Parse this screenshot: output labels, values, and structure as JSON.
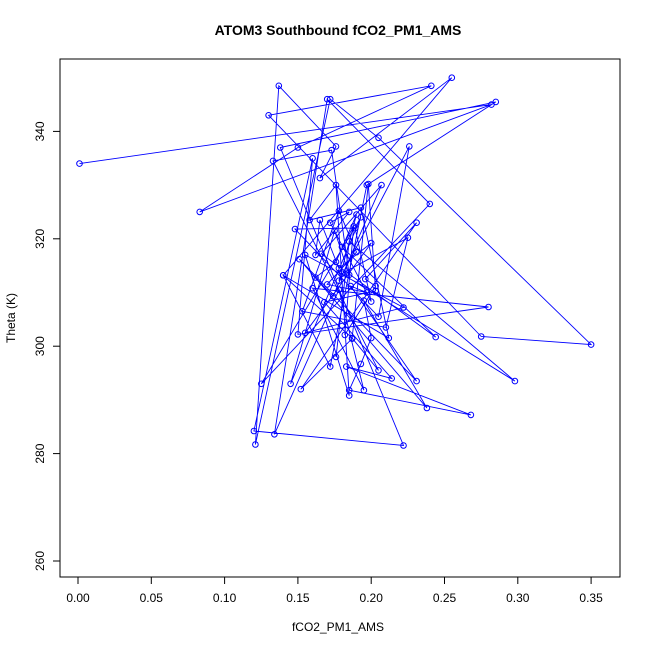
{
  "chart_data": {
    "type": "line",
    "title": "ATOM3 Southbound fCO2_PM1_AMS",
    "xlabel": "fCO2_PM1_AMS",
    "ylabel": "Theta (K)",
    "xlim": [
      0.0,
      0.36
    ],
    "ylim": [
      260,
      352
    ],
    "x_ticks": [
      "0.00",
      "0.05",
      "0.10",
      "0.15",
      "0.20",
      "0.25",
      "0.30",
      "0.35"
    ],
    "y_ticks": [
      "260",
      "280",
      "300",
      "320",
      "340"
    ],
    "marker": "open-circle",
    "color": "#0000ff",
    "grid": false,
    "legend": "none",
    "series": [
      {
        "x": [
          0.001,
          0.282,
          0.083,
          0.15,
          0.241,
          0.13,
          0.275,
          0.35,
          0.205,
          0.172,
          0.121,
          0.137,
          0.176,
          0.165,
          0.255,
          0.14,
          0.187,
          0.205,
          0.133,
          0.173,
          0.185,
          0.175,
          0.145,
          0.193,
          0.125,
          0.24,
          0.17,
          0.134,
          0.178,
          0.195,
          0.16,
          0.28,
          0.15,
          0.16,
          0.12,
          0.222,
          0.138,
          0.285,
          0.197,
          0.172,
          0.14,
          0.212,
          0.193,
          0.158,
          0.176,
          0.185,
          0.155,
          0.222,
          0.155,
          0.2,
          0.178,
          0.165,
          0.162,
          0.185,
          0.172,
          0.2,
          0.189,
          0.148,
          0.205,
          0.226,
          0.178,
          0.19,
          0.176,
          0.162,
          0.174,
          0.207,
          0.166,
          0.244,
          0.18,
          0.188,
          0.182,
          0.203,
          0.196,
          0.231,
          0.152,
          0.187,
          0.198,
          0.203,
          0.168,
          0.214,
          0.183,
          0.268,
          0.185,
          0.193,
          0.2,
          0.195,
          0.238,
          0.151,
          0.231,
          0.186,
          0.197,
          0.17,
          0.19,
          0.178,
          0.153,
          0.21,
          0.225,
          0.18,
          0.298,
          0.185,
          0.176
        ],
        "y": [
          334.0,
          345.0,
          325.0,
          337.0,
          348.5,
          343.0,
          301.8,
          300.3,
          338.8,
          346.0,
          281.7,
          348.5,
          337.2,
          331.3,
          350.0,
          313.2,
          301.5,
          295.5,
          334.5,
          336.5,
          313.3,
          321.5,
          293.0,
          324.0,
          293.0,
          326.5,
          346.0,
          283.6,
          310.5,
          291.8,
          310.8,
          307.3,
          302.2,
          335.0,
          284.2,
          281.5,
          337.0,
          345.5,
          330.0,
          296.2,
          313.2,
          301.5,
          325.8,
          323.5,
          330.0,
          290.8,
          317.0,
          307.2,
          302.5,
          319.2,
          314.5,
          323.5,
          317.0,
          325.0,
          323.0,
          308.3,
          322.0,
          321.8,
          305.5,
          337.2,
          312.2,
          324.5,
          315.7,
          312.8,
          309.3,
          330.0,
          317.2,
          301.7,
          318.5,
          322.3,
          302.1,
          311.2,
          312.5,
          323.0,
          292.0,
          301.4,
          330.2,
          310.3,
          308.2,
          294.0,
          296.2,
          287.2,
          291.8,
          296.7,
          301.5,
          308.5,
          288.5,
          316.2,
          293.5,
          311.2,
          310.0,
          311.5,
          317.5,
          325.2,
          306.5,
          303.5,
          320.2,
          313.5,
          293.5,
          319.5,
          298.0
        ]
      }
    ]
  }
}
